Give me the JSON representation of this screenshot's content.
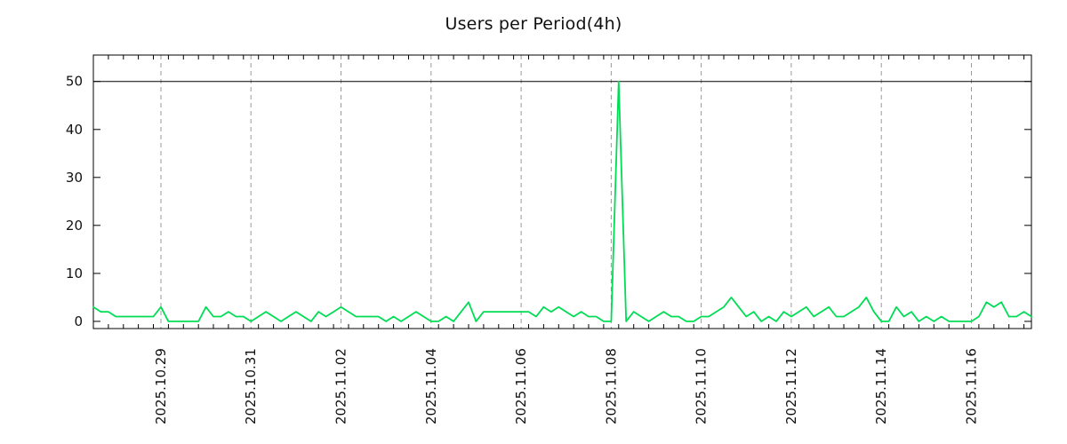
{
  "chart_data": {
    "type": "line",
    "title": "Users per Period(4h)",
    "xlabel": "",
    "ylabel": "",
    "period_hours": 4,
    "ylim": [
      -1.5,
      55.5
    ],
    "y_ticks": [
      0,
      10,
      20,
      30,
      40,
      50
    ],
    "reference_line": 50,
    "grid": "vertical-dashed",
    "legend_position": "none",
    "x_tick_labels": [
      "2025.10.29",
      "2025.10.31",
      "2025.11.02",
      "2025.11.04",
      "2025.11.06",
      "2025.11.08",
      "2025.11.10",
      "2025.11.12",
      "2025.11.14",
      "2025.11.16"
    ],
    "x_tick_indices": [
      9,
      21,
      33,
      45,
      57,
      69,
      81,
      93,
      105,
      117
    ],
    "minor_tick_step": 2,
    "colors": {
      "line": "#00dd55",
      "grid": "#999999",
      "axis": "#000000",
      "reference": "#000000"
    },
    "series": [
      {
        "name": "users",
        "values": [
          3,
          2,
          2,
          1,
          1,
          1,
          1,
          1,
          1,
          3,
          0,
          0,
          0,
          0,
          0,
          3,
          1,
          1,
          2,
          1,
          1,
          0,
          1,
          2,
          1,
          0,
          1,
          2,
          1,
          0,
          2,
          1,
          2,
          3,
          2,
          1,
          1,
          1,
          1,
          0,
          1,
          0,
          1,
          2,
          1,
          0,
          0,
          1,
          0,
          2,
          4,
          0,
          2,
          2,
          2,
          2,
          2,
          2,
          2,
          1,
          3,
          2,
          3,
          2,
          1,
          2,
          1,
          1,
          0,
          0,
          50,
          0,
          2,
          1,
          0,
          1,
          2,
          1,
          1,
          0,
          0,
          1,
          1,
          2,
          3,
          5,
          3,
          1,
          2,
          0,
          1,
          0,
          2,
          1,
          2,
          3,
          1,
          2,
          3,
          1,
          1,
          2,
          3,
          5,
          2,
          0,
          0,
          3,
          1,
          2,
          0,
          1,
          0,
          1,
          0,
          0,
          0,
          0,
          1,
          4,
          3,
          4,
          1,
          1,
          2,
          1
        ]
      }
    ]
  }
}
